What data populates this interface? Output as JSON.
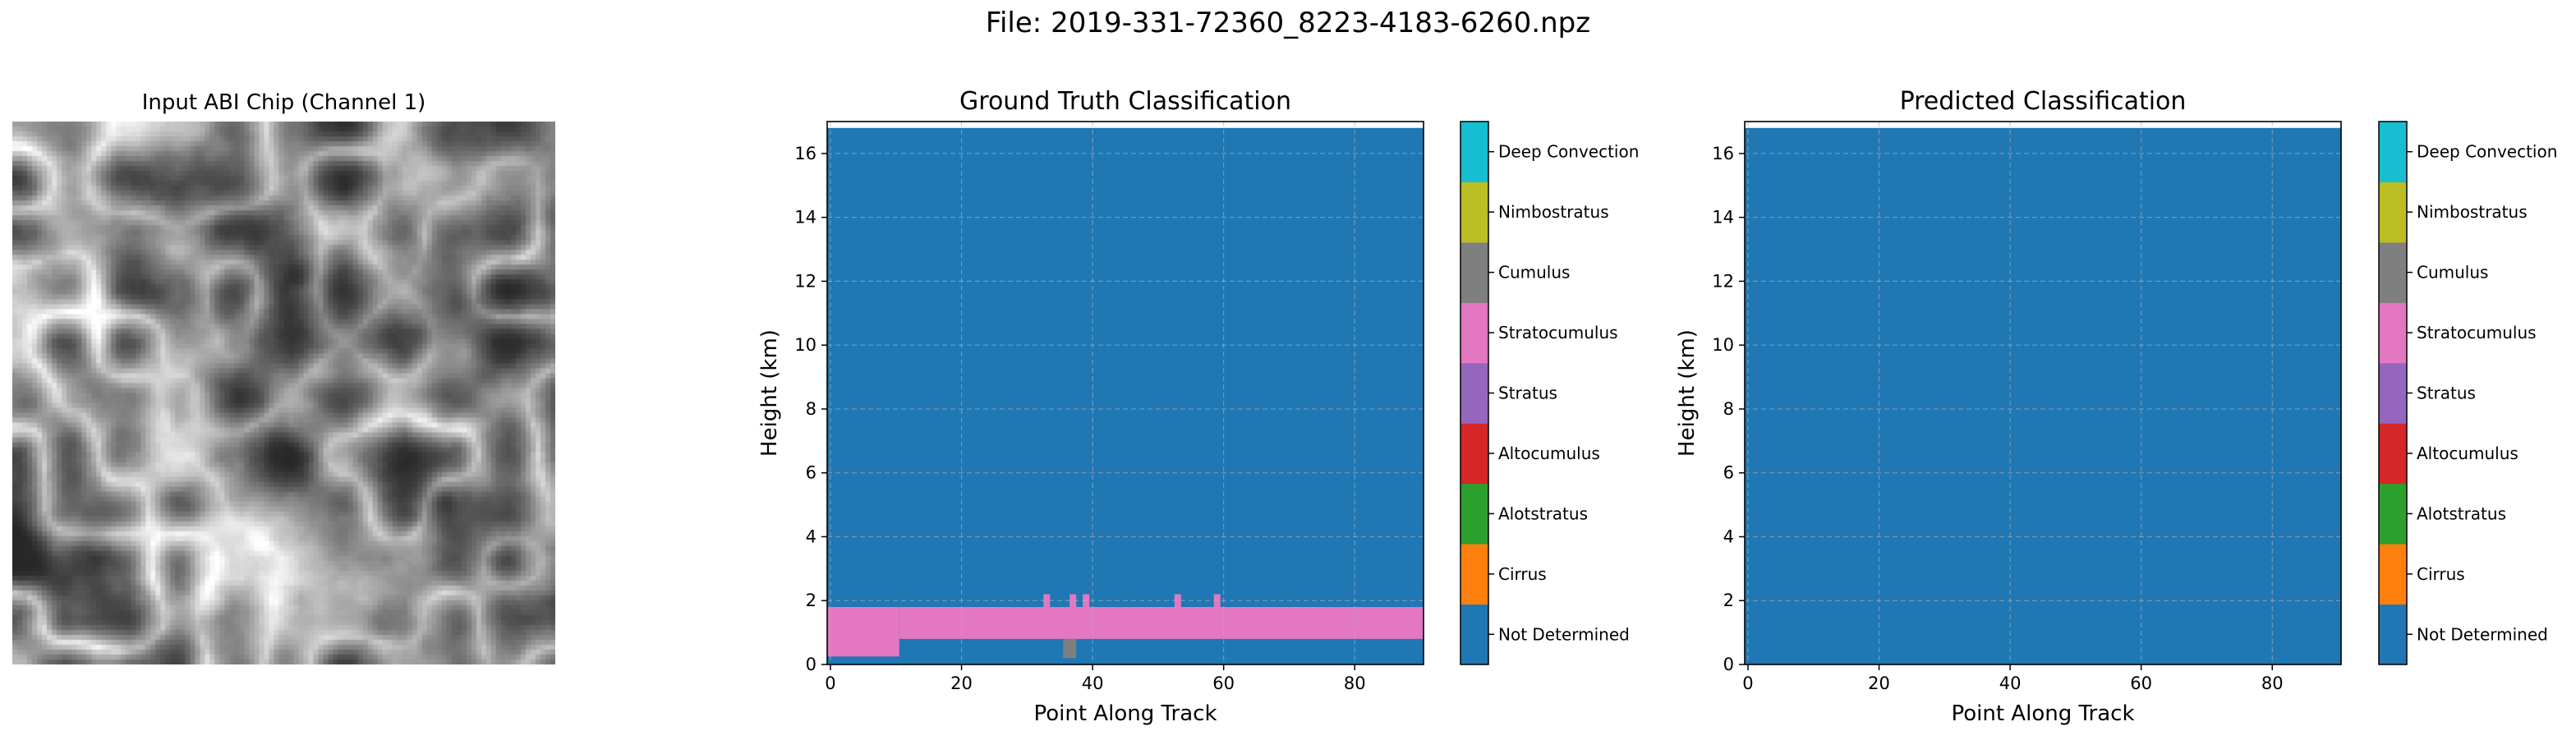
{
  "figure": {
    "suptitle": "File: 2019-331-72360_8223-4183-6260.npz"
  },
  "image_panel": {
    "title": "Input ABI Chip (Channel 1)",
    "colormap": "gray"
  },
  "classes": [
    {
      "name": "Not Determined",
      "color": "#1f77b4"
    },
    {
      "name": "Cirrus",
      "color": "#ff7f0e"
    },
    {
      "name": "Alotstratus",
      "color": "#2ca02c"
    },
    {
      "name": "Altocumulus",
      "color": "#d62728"
    },
    {
      "name": "Stratus",
      "color": "#9467bd"
    },
    {
      "name": "Stratocumulus",
      "color": "#e377c2"
    },
    {
      "name": "Cumulus",
      "color": "#7f7f7f"
    },
    {
      "name": "Nimbostratus",
      "color": "#bcbd22"
    },
    {
      "name": "Deep Convection",
      "color": "#17becf"
    }
  ],
  "chart_data": [
    {
      "type": "heatmap",
      "title": "Ground Truth Classification",
      "xlabel": "Point Along Track",
      "ylabel": "Height (km)",
      "xlim": [
        -0.5,
        90.5
      ],
      "ylim": [
        0,
        17
      ],
      "data_extent_y": [
        0,
        16.8
      ],
      "xticks": [
        0,
        20,
        40,
        60,
        80
      ],
      "yticks": [
        0,
        2,
        4,
        6,
        8,
        10,
        12,
        14,
        16
      ],
      "grid": true,
      "background_class": "Not Determined",
      "regions": [
        {
          "class": "Stratocumulus",
          "x": [
            10.5,
            90.5
          ],
          "y": [
            0.8,
            1.8
          ]
        },
        {
          "class": "Stratocumulus",
          "x": [
            -0.5,
            10.5
          ],
          "y": [
            0.25,
            1.8
          ]
        },
        {
          "class": "Stratocumulus",
          "x": [
            32.5,
            33.5
          ],
          "y": [
            1.8,
            2.2
          ]
        },
        {
          "class": "Stratocumulus",
          "x": [
            36.5,
            37.5
          ],
          "y": [
            1.8,
            2.2
          ]
        },
        {
          "class": "Stratocumulus",
          "x": [
            38.5,
            39.5
          ],
          "y": [
            1.8,
            2.2
          ]
        },
        {
          "class": "Stratocumulus",
          "x": [
            52.5,
            53.5
          ],
          "y": [
            1.8,
            2.2
          ]
        },
        {
          "class": "Stratocumulus",
          "x": [
            58.5,
            59.5
          ],
          "y": [
            1.8,
            2.2
          ]
        },
        {
          "class": "Cumulus",
          "x": [
            35.5,
            37.5
          ],
          "y": [
            0.2,
            0.8
          ]
        }
      ],
      "colorbar": [
        "Not Determined",
        "Cirrus",
        "Alotstratus",
        "Altocumulus",
        "Stratus",
        "Stratocumulus",
        "Cumulus",
        "Nimbostratus",
        "Deep Convection"
      ]
    },
    {
      "type": "heatmap",
      "title": "Predicted Classification",
      "xlabel": "Point Along Track",
      "ylabel": "Height (km)",
      "xlim": [
        -0.5,
        90.5
      ],
      "ylim": [
        0,
        17
      ],
      "data_extent_y": [
        0,
        16.8
      ],
      "xticks": [
        0,
        20,
        40,
        60,
        80
      ],
      "yticks": [
        0,
        2,
        4,
        6,
        8,
        10,
        12,
        14,
        16
      ],
      "grid": true,
      "background_class": "Not Determined",
      "regions": [],
      "colorbar": [
        "Not Determined",
        "Cirrus",
        "Alotstratus",
        "Altocumulus",
        "Stratus",
        "Stratocumulus",
        "Cumulus",
        "Nimbostratus",
        "Deep Convection"
      ]
    }
  ]
}
